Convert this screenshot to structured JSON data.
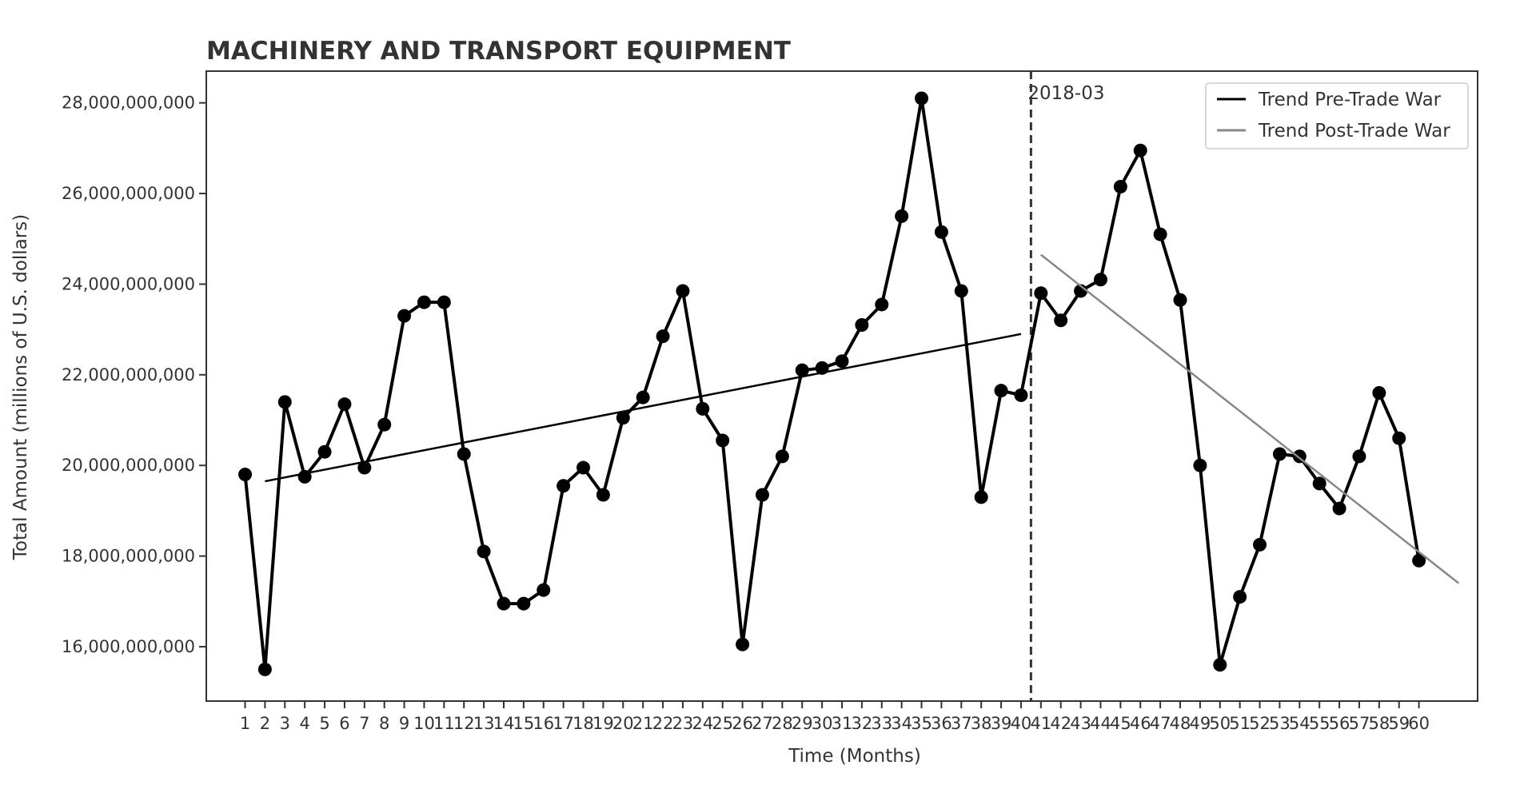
{
  "chart_data": {
    "type": "line",
    "title": "MACHINERY AND TRANSPORT EQUIPMENT",
    "xlabel": "Time (Months)",
    "ylabel": "Total Amount (millions of U.S. dollars)",
    "x": [
      1,
      2,
      3,
      4,
      5,
      6,
      7,
      8,
      9,
      10,
      11,
      12,
      13,
      14,
      15,
      16,
      17,
      18,
      19,
      20,
      21,
      22,
      23,
      24,
      25,
      26,
      27,
      28,
      29,
      30,
      31,
      32,
      33,
      34,
      35,
      36,
      37,
      38,
      39,
      40,
      41,
      42,
      43,
      44,
      45,
      46,
      47,
      48,
      49,
      50,
      51,
      52,
      53,
      54,
      55,
      56,
      57,
      58,
      59,
      60
    ],
    "x_tick_labels": [
      "1",
      "2",
      "3",
      "4",
      "5",
      "6",
      "7",
      "8",
      "9",
      "10",
      "11",
      "12",
      "13",
      "14",
      "15",
      "16",
      "17",
      "18",
      "19",
      "20",
      "21",
      "22",
      "23",
      "24",
      "25",
      "26",
      "27",
      "28",
      "29",
      "30",
      "31",
      "32",
      "33",
      "34",
      "35",
      "36",
      "37",
      "38",
      "39",
      "40",
      "41",
      "42",
      "43",
      "44",
      "45",
      "46",
      "47",
      "48",
      "49",
      "50",
      "51",
      "52",
      "53",
      "54",
      "55",
      "56",
      "57",
      "58",
      "59",
      "60"
    ],
    "xlim": [
      -0.95,
      62.95
    ],
    "ylim": [
      14800000000,
      28700000000
    ],
    "y_ticks": [
      16000000000,
      18000000000,
      20000000000,
      22000000000,
      24000000000,
      26000000000,
      28000000000
    ],
    "y_tick_labels": [
      "16,000,000,000",
      "18,000,000,000",
      "20,000,000,000",
      "22,000,000,000",
      "24,000,000,000",
      "26,000,000,000",
      "28,000,000,000"
    ],
    "series": [
      {
        "values": [
          19800000000,
          15500000000,
          21400000000,
          19750000000,
          20300000000,
          21350000000,
          19950000000,
          20900000000,
          23300000000,
          23600000000,
          23600000000,
          20250000000,
          18100000000,
          16950000000,
          16950000000,
          17250000000,
          19550000000,
          19950000000,
          19350000000,
          21050000000,
          21500000000,
          22850000000,
          23850000000,
          21250000000,
          20550000000,
          16050000000,
          19350000000,
          20200000000,
          22100000000,
          22150000000,
          22300000000,
          23100000000,
          23550000000,
          25500000000,
          28100000000,
          25150000000,
          23850000000,
          19300000000,
          21650000000,
          21550000000,
          23800000000,
          23200000000,
          23850000000,
          24100000000,
          26150000000,
          26950000000,
          25100000000,
          23650000000,
          20000000000,
          15600000000,
          17100000000,
          18250000000,
          20250000000,
          20200000000,
          19600000000,
          19050000000,
          20200000000,
          21600000000,
          20600000000,
          17900000000
        ],
        "color": "#000000",
        "marker": "circle"
      }
    ],
    "trend_lines": [
      {
        "name": "Trend Pre-Trade War",
        "x": [
          2,
          40
        ],
        "y": [
          19650000000,
          22900000000
        ],
        "color": "#000000"
      },
      {
        "name": "Trend Post-Trade War",
        "x": [
          41,
          62
        ],
        "y": [
          24650000000,
          17400000000
        ],
        "color": "#888888"
      }
    ],
    "vline": {
      "x": 40.5,
      "label": "2018-03",
      "style": "dashed"
    },
    "legend": {
      "position": "top-right",
      "entries": [
        "Trend Pre-Trade War",
        "Trend Post-Trade War"
      ]
    },
    "grid": false
  }
}
